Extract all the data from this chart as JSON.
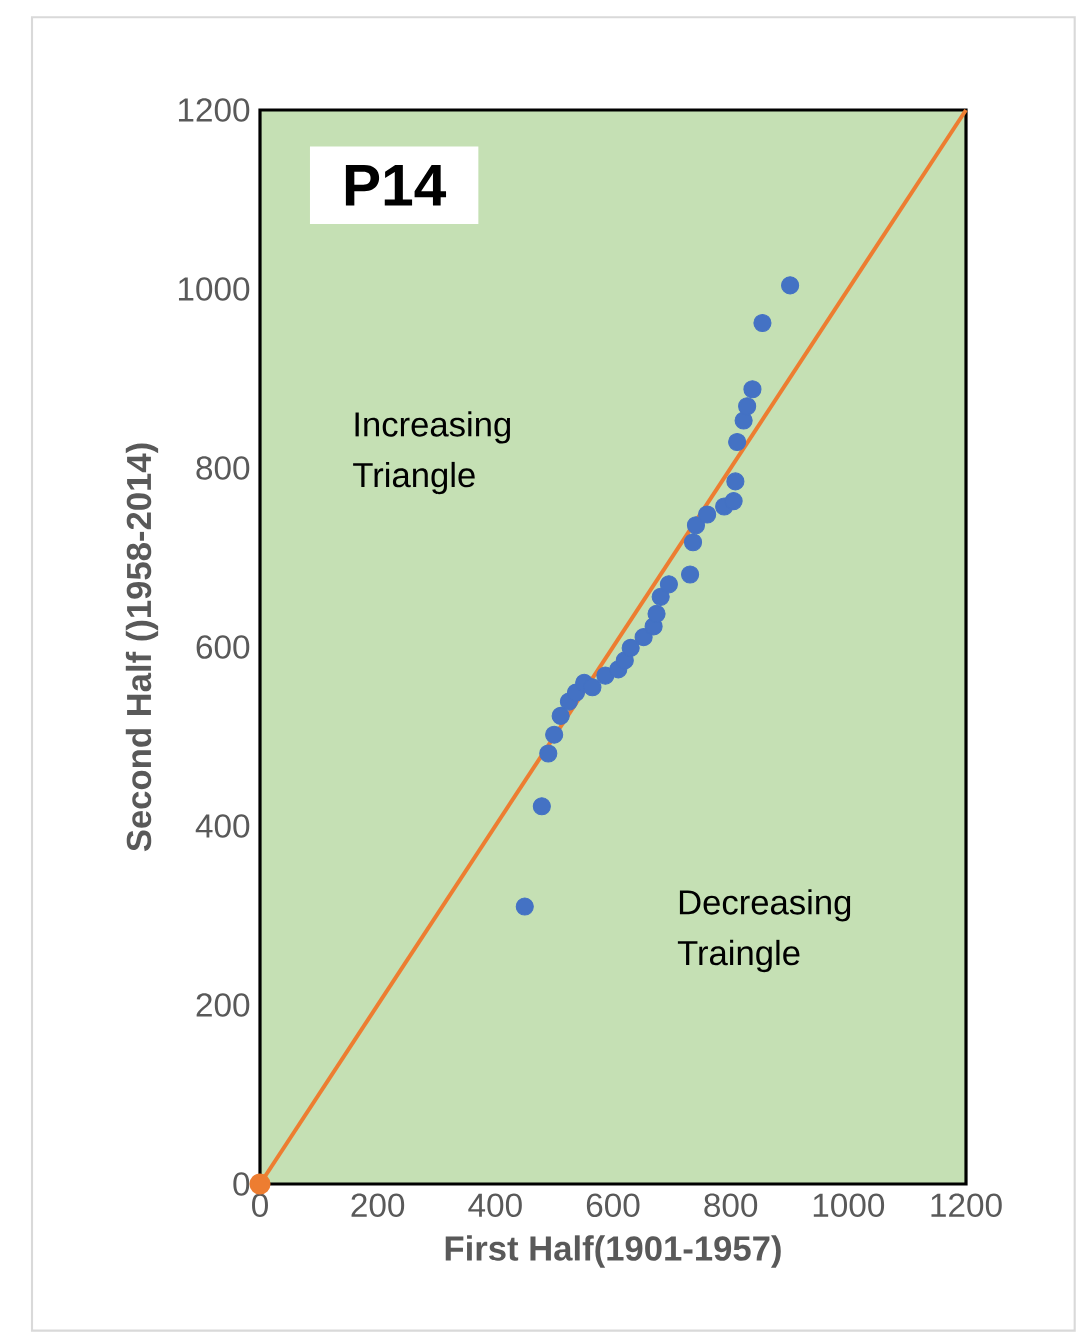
{
  "chart_data": {
    "type": "scatter",
    "title": "P14",
    "xlabel": "First Half(1901-1957)",
    "ylabel": "Second Half ()1958-2014)",
    "annotations": [
      "Increasing Triangle",
      "Decreasing Traingle"
    ],
    "xlim": [
      0,
      1200
    ],
    "ylim": [
      0,
      1200
    ],
    "xticks": [
      0,
      200,
      400,
      600,
      800,
      1000,
      1200
    ],
    "yticks": [
      0,
      200,
      400,
      600,
      800,
      1000,
      1200
    ],
    "grid": false,
    "series": [
      {
        "color": "#4472c4",
        "marker": "circle",
        "x": [
          450,
          479,
          490,
          500,
          511,
          525,
          537,
          551,
          565,
          587,
          609,
          620,
          630,
          652,
          669,
          674,
          681,
          695,
          731,
          736,
          741,
          760,
          789,
          805,
          808,
          811,
          822,
          828,
          837,
          854,
          901
        ],
        "values": [
          310,
          422,
          481,
          502,
          523,
          539,
          549,
          560,
          555,
          568,
          575,
          585,
          599,
          611,
          623,
          637,
          656,
          670,
          681,
          717,
          736,
          748,
          757,
          763,
          785,
          829,
          853,
          869,
          888,
          962,
          1004
        ]
      },
      {
        "type": "line",
        "color": "#ed7d31",
        "marker": "circle",
        "x": [
          0,
          1200
        ],
        "values": [
          0,
          1200
        ]
      }
    ]
  }
}
